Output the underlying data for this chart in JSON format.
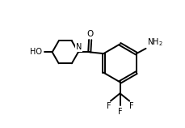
{
  "bg_color": "#ffffff",
  "line_color": "#000000",
  "line_width": 1.4,
  "font_size": 7.0,
  "xlim": [
    0,
    10
  ],
  "ylim": [
    0,
    7
  ]
}
